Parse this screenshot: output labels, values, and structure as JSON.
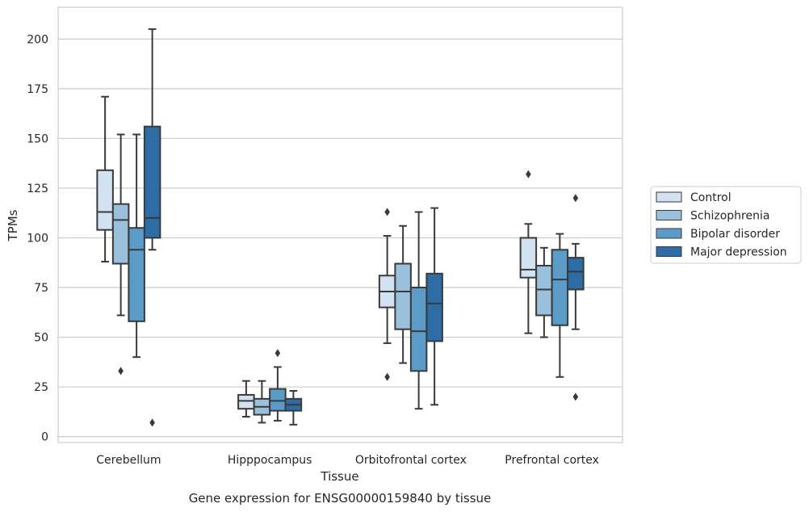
{
  "chart_data": {
    "type": "boxplot",
    "title": "",
    "caption": "Gene expression for ENSG00000159840 by tissue",
    "xlabel": "Tissue",
    "ylabel": "TPMs",
    "ylim": [
      -3,
      216
    ],
    "yticks": [
      0,
      25,
      50,
      75,
      100,
      125,
      150,
      175,
      200
    ],
    "grid": "horizontal",
    "legend_position": "right",
    "categories": [
      "Cerebellum",
      "Hipppocampus",
      "Orbitofrontal cortex",
      "Prefrontal cortex"
    ],
    "series": [
      {
        "name": "Control",
        "color": "#d2e2f0",
        "boxes": [
          {
            "whislo": 88,
            "q1": 104,
            "med": 113,
            "q3": 134,
            "whishi": 171,
            "fliers": []
          },
          {
            "whislo": 10,
            "q1": 14,
            "med": 18,
            "q3": 21,
            "whishi": 28,
            "fliers": []
          },
          {
            "whislo": 47,
            "q1": 65,
            "med": 73,
            "q3": 81,
            "whishi": 101,
            "fliers": [
              113,
              30
            ]
          },
          {
            "whislo": 52,
            "q1": 80,
            "med": 84,
            "q3": 100,
            "whishi": 107,
            "fliers": [
              132
            ]
          }
        ]
      },
      {
        "name": "Schizophrenia",
        "color": "#9ac0db",
        "boxes": [
          {
            "whislo": 61,
            "q1": 87,
            "med": 109,
            "q3": 117,
            "whishi": 152,
            "fliers": [
              33
            ]
          },
          {
            "whislo": 7,
            "q1": 11,
            "med": 15,
            "q3": 19,
            "whishi": 28,
            "fliers": []
          },
          {
            "whislo": 37,
            "q1": 54,
            "med": 73,
            "q3": 87,
            "whishi": 106,
            "fliers": []
          },
          {
            "whislo": 50,
            "q1": 61,
            "med": 74,
            "q3": 86,
            "whishi": 95,
            "fliers": []
          }
        ]
      },
      {
        "name": "Bipolar disorder",
        "color": "#5b9bc7",
        "boxes": [
          {
            "whislo": 40,
            "q1": 58,
            "med": 94,
            "q3": 105,
            "whishi": 152,
            "fliers": []
          },
          {
            "whislo": 8,
            "q1": 13,
            "med": 18,
            "q3": 24,
            "whishi": 35,
            "fliers": [
              42
            ]
          },
          {
            "whislo": 14,
            "q1": 33,
            "med": 53,
            "q3": 75,
            "whishi": 113,
            "fliers": []
          },
          {
            "whislo": 30,
            "q1": 56,
            "med": 79,
            "q3": 94,
            "whishi": 102,
            "fliers": []
          }
        ]
      },
      {
        "name": "Major depression",
        "color": "#2e6ca6",
        "boxes": [
          {
            "whislo": 94,
            "q1": 100,
            "med": 110,
            "q3": 156,
            "whishi": 205,
            "fliers": [
              7
            ]
          },
          {
            "whislo": 6,
            "q1": 13,
            "med": 16,
            "q3": 19,
            "whishi": 23,
            "fliers": []
          },
          {
            "whislo": 16,
            "q1": 48,
            "med": 67,
            "q3": 82,
            "whishi": 115,
            "fliers": []
          },
          {
            "whislo": 54,
            "q1": 74,
            "med": 83,
            "q3": 90,
            "whishi": 97,
            "fliers": [
              120,
              20
            ]
          }
        ]
      }
    ]
  }
}
